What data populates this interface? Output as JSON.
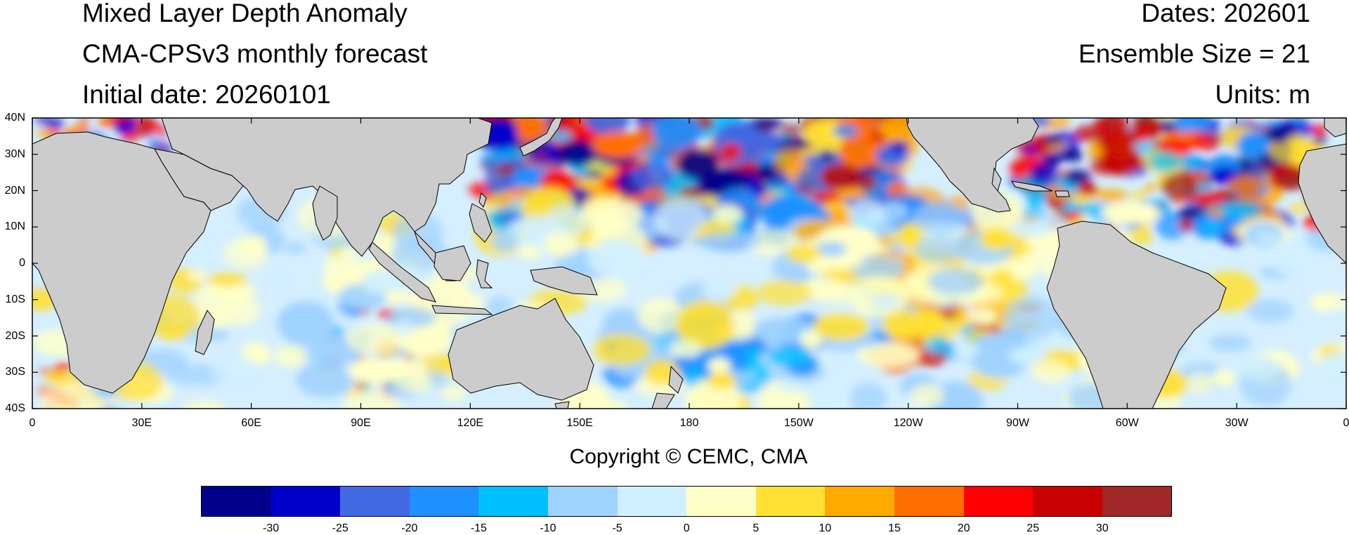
{
  "header": {
    "title": "Mixed Layer Depth Anomaly",
    "subtitle": "CMA-CPSv3 monthly forecast",
    "initial_date": "Initial date: 20260101",
    "dates": "Dates: 202601",
    "ensemble": "Ensemble Size = 21",
    "units": "Units: m"
  },
  "map": {
    "lat_labels": [
      "40N",
      "30N",
      "20N",
      "10N",
      "0",
      "10S",
      "20S",
      "30S",
      "40S"
    ],
    "lon_labels": [
      "0",
      "30E",
      "60E",
      "90E",
      "120E",
      "150E",
      "180",
      "150W",
      "120W",
      "90W",
      "60W",
      "30W",
      "0"
    ],
    "lon_range": [
      0,
      360
    ],
    "lat_range": [
      -40,
      40
    ],
    "land_color": "#cccccc",
    "ocean_base_color": "#d5efff"
  },
  "copyright": "Copyright © CEMC, CMA",
  "colorbar": {
    "colors": [
      "#00008b",
      "#0000cd",
      "#4169e1",
      "#1e90ff",
      "#00bfff",
      "#a0d2ff",
      "#d1f0ff",
      "#ffffc8",
      "#ffe033",
      "#ffaa00",
      "#ff6e00",
      "#ff0000",
      "#c80000",
      "#a02828"
    ],
    "labels": [
      "-30",
      "-25",
      "-20",
      "-15",
      "-10",
      "-5",
      "0",
      "5",
      "10",
      "15",
      "20",
      "25",
      "30"
    ]
  }
}
